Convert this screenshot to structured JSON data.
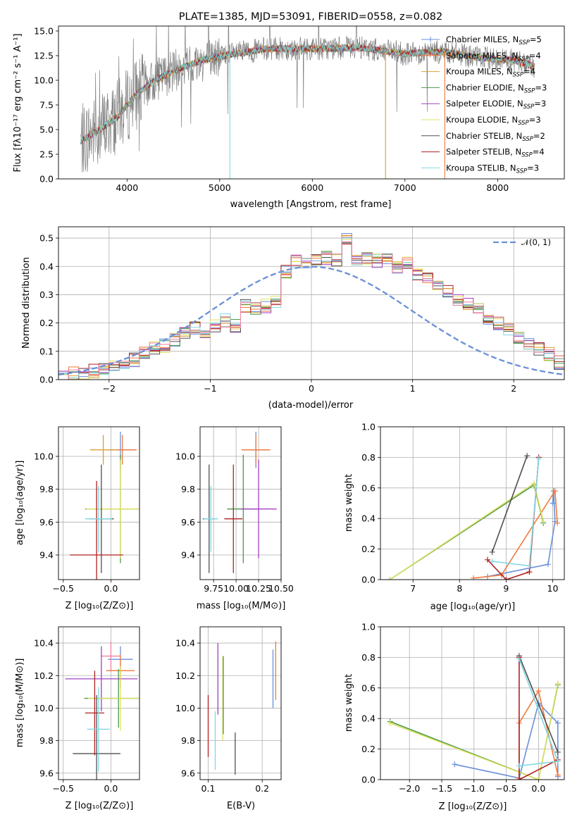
{
  "chart_data": [
    {
      "type": "line",
      "title": "PLATE=1385, MJD=53091, FIBERID=0558, z=0.082",
      "xlabel": "wavelength [Angstrom, rest frame]",
      "ylabel": "Flux [fλ10⁻¹⁷ erg cm⁻² s⁻¹ A⁻¹]",
      "xlim": [
        3260,
        8720
      ],
      "ylim": [
        0,
        15.5
      ],
      "xticks": [
        "4000",
        "5000",
        "6000",
        "7000",
        "8000"
      ],
      "yticks": [
        "0.0",
        "2.5",
        "5.0",
        "7.5",
        "10.0",
        "12.5",
        "15.0"
      ],
      "legend_position": "right",
      "series": [
        {
          "name": "Chabrier MILES, N_SSP=5",
          "color": "#6a8fd8"
        },
        {
          "name": "Salpeter MILES, N_SSP=4",
          "color": "#f07a3a"
        },
        {
          "name": "Kroupa MILES, N_SSP=4",
          "color": "#d8a030"
        },
        {
          "name": "Chabrier ELODIE, N_SSP=3",
          "color": "#4a9a4a"
        },
        {
          "name": "Salpeter ELODIE, N_SSP=3",
          "color": "#a040c0"
        },
        {
          "name": "Kroupa ELODIE, N_SSP=3",
          "color": "#e0e060"
        },
        {
          "name": "Chabrier STELIB, N_SSP=2",
          "color": "#505050"
        },
        {
          "name": "Salpeter STELIB, N_SSP=4",
          "color": "#b02020"
        },
        {
          "name": "Kroupa STELIB, N_SSP=3",
          "color": "#80d8e0"
        }
      ],
      "data_trend": {
        "x": [
          3500,
          3700,
          3900,
          4100,
          4300,
          4500,
          4800,
          5100,
          5500,
          6000,
          6500,
          7000,
          7400,
          7800,
          8200,
          8400
        ],
        "y": [
          3.8,
          5.0,
          6.3,
          8.6,
          10.0,
          10.9,
          12.0,
          12.6,
          13.2,
          13.2,
          13.3,
          12.7,
          12.9,
          12.3,
          12.0,
          11.4
        ]
      }
    },
    {
      "type": "bar",
      "xlabel": "(data-model)/error",
      "ylabel": "Normed distribution",
      "xlim": [
        -2.5,
        2.5
      ],
      "ylim": [
        0,
        0.54
      ],
      "xticks": [
        "−2",
        "−1",
        "0",
        "1",
        "2"
      ],
      "yticks": [
        "0.0",
        "0.1",
        "0.2",
        "0.3",
        "0.4",
        "0.5"
      ],
      "legend": "𝒩(0, 1)",
      "histogram": {
        "bin_edges_start": -2.5,
        "bin_width": 0.1,
        "values": [
          0.015,
          0.02,
          0.025,
          0.03,
          0.04,
          0.05,
          0.06,
          0.07,
          0.09,
          0.11,
          0.12,
          0.14,
          0.16,
          0.18,
          0.17,
          0.19,
          0.21,
          0.19,
          0.26,
          0.25,
          0.26,
          0.28,
          0.38,
          0.42,
          0.41,
          0.42,
          0.43,
          0.42,
          0.5,
          0.42,
          0.43,
          0.42,
          0.43,
          0.4,
          0.41,
          0.37,
          0.36,
          0.33,
          0.31,
          0.28,
          0.27,
          0.25,
          0.22,
          0.2,
          0.18,
          0.15,
          0.13,
          0.11,
          0.09,
          0.06
        ]
      },
      "gaussian": {
        "mean": 0,
        "sigma": 1
      }
    },
    {
      "type": "scatter",
      "xlabel": "Z [log₁₀(Z/Z⊙)]",
      "ylabel": "age  [log₁₀(age/yr)]",
      "xlim": [
        -0.55,
        0.3
      ],
      "ylim": [
        9.25,
        10.18
      ],
      "xticks": [
        "−0.5",
        "0.0"
      ],
      "yticks": [
        "9.4",
        "9.6",
        "9.8",
        "10.0"
      ],
      "points": [
        {
          "x": 0.1,
          "y": 10.04,
          "xerr": 0.15,
          "yerr": 0.11,
          "color": "#6a8fd8"
        },
        {
          "x": 0.12,
          "y": 10.04,
          "xerr": 0.15,
          "yerr": 0.09,
          "color": "#f07a3a"
        },
        {
          "x": -0.08,
          "y": 10.04,
          "xerr": 0.14,
          "yerr": 0.09,
          "color": "#d8a030"
        },
        {
          "x": 0.1,
          "y": 9.68,
          "xerr": 0.37,
          "yerr": 0.33,
          "color": "#4a9a4a"
        },
        {
          "x": 0.1,
          "y": 9.68,
          "xerr": 0.36,
          "yerr": 0.3,
          "color": "#e0e060"
        },
        {
          "x": -0.1,
          "y": 9.62,
          "xerr": 0.13,
          "yerr": 0.33,
          "color": "#505050"
        },
        {
          "x": -0.15,
          "y": 9.4,
          "xerr": 0.28,
          "yerr": 0.45,
          "color": "#b02020"
        },
        {
          "x": -0.13,
          "y": 9.62,
          "xerr": 0.14,
          "yerr": 0.2,
          "color": "#80d8e0"
        }
      ]
    },
    {
      "type": "scatter",
      "xlabel": "mass [log₁₀(M/M⊙)]",
      "xlim": [
        9.6,
        10.5
      ],
      "ylim": [
        9.25,
        10.18
      ],
      "xticks": [
        "9.75",
        "10.00",
        "10.25",
        "10.50"
      ],
      "yticks": [
        "9.4",
        "9.6",
        "9.8",
        "10.0"
      ],
      "points": [
        {
          "x": 10.22,
          "y": 10.04,
          "xerr": 0.14,
          "yerr": 0.11,
          "color": "#6a8fd8"
        },
        {
          "x": 10.22,
          "y": 10.04,
          "xerr": 0.16,
          "yerr": 0.09,
          "color": "#f07a3a"
        },
        {
          "x": 10.08,
          "y": 9.68,
          "xerr": 0.18,
          "yerr": 0.33,
          "color": "#4a9a4a"
        },
        {
          "x": 10.25,
          "y": 9.68,
          "xerr": 0.2,
          "yerr": 0.3,
          "color": "#a040c0"
        },
        {
          "x": 9.7,
          "y": 9.62,
          "xerr": 0.07,
          "yerr": 0.33,
          "color": "#505050"
        },
        {
          "x": 9.97,
          "y": 9.62,
          "xerr": 0.1,
          "yerr": 0.33,
          "color": "#b02020"
        },
        {
          "x": 9.72,
          "y": 9.62,
          "xerr": 0.08,
          "yerr": 0.2,
          "color": "#80d8e0"
        }
      ]
    },
    {
      "type": "line",
      "xlabel": "age  [log₁₀(age/yr)]",
      "ylabel": "mass weight",
      "xlim": [
        6.3,
        10.25
      ],
      "ylim": [
        0,
        1.0
      ],
      "xticks": [
        "7",
        "8",
        "9",
        "10"
      ],
      "yticks": [
        "0.0",
        "0.2",
        "0.4",
        "0.6",
        "0.8",
        "1.0"
      ],
      "series": [
        {
          "color": "#6a8fd8",
          "x": [
            8.6,
            9.9,
            10.05,
            10.02,
            10.0
          ],
          "y": [
            0.02,
            0.1,
            0.38,
            0.58,
            0.5
          ]
        },
        {
          "color": "#f07a3a",
          "x": [
            8.3,
            8.9,
            10.05,
            10.1
          ],
          "y": [
            0.01,
            0.03,
            0.58,
            0.37
          ]
        },
        {
          "color": "#4a9a4a",
          "x": [
            6.5,
            9.6,
            9.8
          ],
          "y": [
            0.0,
            0.62,
            0.37
          ]
        },
        {
          "color": "#e0e060",
          "x": [
            6.5,
            9.6,
            9.8
          ],
          "y": [
            0.0,
            0.63,
            0.38
          ]
        },
        {
          "color": "#505050",
          "x": [
            8.7,
            9.45
          ],
          "y": [
            0.18,
            0.81
          ]
        },
        {
          "color": "#b02020",
          "x": [
            8.6,
            9.0,
            9.5,
            9.7
          ],
          "y": [
            0.13,
            0.0,
            0.05,
            0.8
          ]
        },
        {
          "color": "#80d8e0",
          "x": [
            8.7,
            9.5,
            9.7
          ],
          "y": [
            0.12,
            0.09,
            0.79
          ]
        }
      ]
    },
    {
      "type": "scatter",
      "xlabel": "Z [log₁₀(Z/Z⊙)]",
      "ylabel": "mass [log₁₀(M/M⊙)]",
      "xlim": [
        -0.55,
        0.3
      ],
      "ylim": [
        9.56,
        10.5
      ],
      "xticks": [
        "−0.5",
        "0.0"
      ],
      "yticks": [
        "9.6",
        "9.8",
        "10.0",
        "10.2",
        "10.4"
      ],
      "points": [
        {
          "x": 0.1,
          "y": 10.3,
          "xerr": 0.13,
          "yerr": 0.08,
          "color": "#6a8fd8"
        },
        {
          "x": 0.1,
          "y": 10.23,
          "xerr": 0.15,
          "yerr": 0.1,
          "color": "#f07a3a"
        },
        {
          "x": 0.0,
          "y": 10.32,
          "xerr": 0.1,
          "yerr": 0.09,
          "color": "#f080a0"
        },
        {
          "x": 0.08,
          "y": 10.06,
          "xerr": 0.36,
          "yerr": 0.18,
          "color": "#4a9a4a"
        },
        {
          "x": -0.1,
          "y": 10.18,
          "xerr": 0.38,
          "yerr": 0.2,
          "color": "#a040c0"
        },
        {
          "x": 0.1,
          "y": 10.06,
          "xerr": 0.34,
          "yerr": 0.2,
          "color": "#e0e060"
        },
        {
          "x": -0.15,
          "y": 9.72,
          "xerr": 0.25,
          "yerr": 0.36,
          "color": "#505050"
        },
        {
          "x": -0.17,
          "y": 9.97,
          "xerr": 0.1,
          "yerr": 0.26,
          "color": "#b02020"
        },
        {
          "x": -0.13,
          "y": 9.87,
          "xerr": 0.12,
          "yerr": 0.26,
          "color": "#80d8e0"
        }
      ]
    },
    {
      "type": "scatter",
      "xlabel": "E(B-V)",
      "xlim": [
        0.085,
        0.235
      ],
      "ylim": [
        9.56,
        10.5
      ],
      "xticks": [
        "0.1",
        "0.2"
      ],
      "yticks": [
        "9.6",
        "9.8",
        "10.0",
        "10.2",
        "10.4"
      ],
      "points": [
        {
          "x": 0.22,
          "y": 10.18,
          "yerr": 0.18,
          "color": "#6a8fd8"
        },
        {
          "x": 0.225,
          "y": 10.23,
          "yerr": 0.18,
          "color": "#f07a3a"
        },
        {
          "x": 0.118,
          "y": 10.18,
          "yerr": 0.22,
          "color": "#a040c0"
        },
        {
          "x": 0.127,
          "y": 10.06,
          "yerr": 0.26,
          "color": "#e0e060"
        },
        {
          "x": 0.128,
          "y": 10.08,
          "yerr": 0.24,
          "color": "#4a9a4a"
        },
        {
          "x": 0.15,
          "y": 9.72,
          "yerr": 0.13,
          "color": "#505050"
        },
        {
          "x": 0.1,
          "y": 9.89,
          "yerr": 0.19,
          "color": "#b02020"
        },
        {
          "x": 0.113,
          "y": 9.8,
          "yerr": 0.18,
          "color": "#80d8e0"
        }
      ]
    },
    {
      "type": "line",
      "xlabel": "Z [log₁₀(Z/Z⊙)]",
      "ylabel": "mass weight",
      "xlim": [
        -2.45,
        0.4
      ],
      "ylim": [
        0,
        1.0
      ],
      "xticks": [
        "−2.0",
        "−1.5",
        "−1.0",
        "−0.5",
        "0.0"
      ],
      "yticks": [
        "0.0",
        "0.2",
        "0.4",
        "0.6",
        "0.8",
        "1.0"
      ],
      "series": [
        {
          "color": "#6a8fd8",
          "x": [
            -1.3,
            -0.3,
            0.0,
            0.3,
            0.3
          ],
          "y": [
            0.1,
            0.01,
            0.5,
            0.37,
            0.02
          ]
        },
        {
          "color": "#f07a3a",
          "x": [
            -0.3,
            -0.3,
            0.0,
            0.3
          ],
          "y": [
            0.01,
            0.37,
            0.58,
            0.03
          ]
        },
        {
          "color": "#4a9a4a",
          "x": [
            -2.3,
            0.0,
            0.3
          ],
          "y": [
            0.38,
            0.0,
            0.62
          ]
        },
        {
          "color": "#e0e060",
          "x": [
            -2.3,
            0.0,
            0.3
          ],
          "y": [
            0.37,
            0.0,
            0.63
          ]
        },
        {
          "color": "#505050",
          "x": [
            -0.3,
            0.3
          ],
          "y": [
            0.81,
            0.18
          ]
        },
        {
          "color": "#b02020",
          "x": [
            -0.3,
            -0.3,
            0.3
          ],
          "y": [
            0.8,
            0.0,
            0.13
          ]
        },
        {
          "color": "#80d8e0",
          "x": [
            -0.3,
            0.3,
            -0.3
          ],
          "y": [
            0.79,
            0.12,
            0.09
          ]
        }
      ]
    }
  ]
}
